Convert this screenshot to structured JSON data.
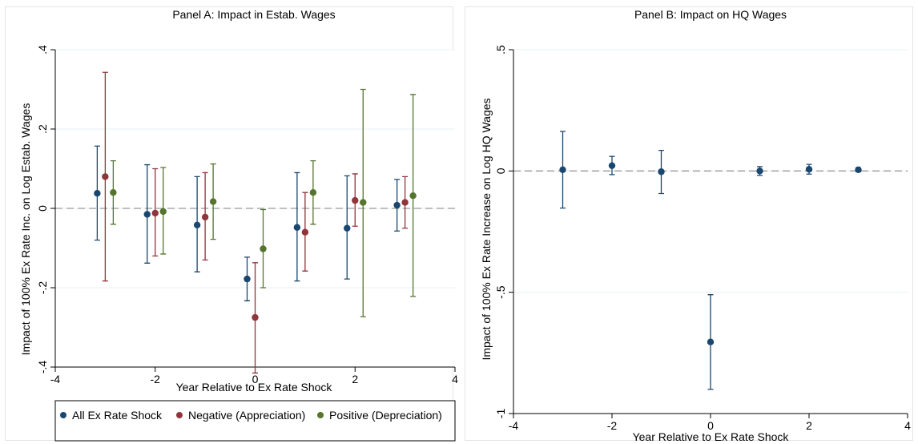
{
  "colors": {
    "all": "#1a476f",
    "negative": "#90353b",
    "positive": "#55752f",
    "grid": "#eaf0f5",
    "zero_line": "#999999"
  },
  "chart_data": [
    {
      "type": "scatter",
      "title": "Panel A: Impact in Estab. Wages",
      "xlabel": "Year Relative to Ex Rate Shock",
      "ylabel": "Impact of 100% Ex Rate Inc. on Log Estab. Wages",
      "xlim": [
        -4,
        4
      ],
      "ylim": [
        -0.4,
        0.4
      ],
      "xticks": [
        -4,
        -2,
        0,
        2,
        4
      ],
      "xtick_labels": [
        "-4",
        "-2",
        "0",
        "2",
        "4"
      ],
      "yticks": [
        -0.4,
        -0.2,
        0,
        0.2,
        0.4
      ],
      "ytick_labels": [
        "-.4",
        "-.2",
        "0",
        ".2",
        ".4"
      ],
      "grid": true,
      "reference_line_y": 0,
      "legend": {
        "position": "bottom",
        "entries": [
          "All Ex Rate Shock",
          "Negative (Appreciation)",
          "Positive (Depreciation)"
        ]
      },
      "series": [
        {
          "name": "All Ex Rate Shock",
          "color": "#1a476f",
          "points": [
            {
              "x": -3,
              "y": 0.038,
              "lo": -0.08,
              "hi": 0.157
            },
            {
              "x": -2,
              "y": -0.015,
              "lo": -0.138,
              "hi": 0.11
            },
            {
              "x": -1,
              "y": -0.042,
              "lo": -0.16,
              "hi": 0.08
            },
            {
              "x": 0,
              "y": -0.178,
              "lo": -0.233,
              "hi": -0.123
            },
            {
              "x": 1,
              "y": -0.048,
              "lo": -0.183,
              "hi": 0.09
            },
            {
              "x": 2,
              "y": -0.05,
              "lo": -0.178,
              "hi": 0.082
            },
            {
              "x": 3,
              "y": 0.008,
              "lo": -0.057,
              "hi": 0.073
            }
          ]
        },
        {
          "name": "Negative (Appreciation)",
          "color": "#90353b",
          "points": [
            {
              "x": -3,
              "y": 0.08,
              "lo": -0.183,
              "hi": 0.343
            },
            {
              "x": -2,
              "y": -0.012,
              "lo": -0.12,
              "hi": 0.1
            },
            {
              "x": -1,
              "y": -0.022,
              "lo": -0.13,
              "hi": 0.09
            },
            {
              "x": 0,
              "y": -0.275,
              "lo": -0.415,
              "hi": -0.137
            },
            {
              "x": 1,
              "y": -0.06,
              "lo": -0.158,
              "hi": 0.04
            },
            {
              "x": 2,
              "y": 0.02,
              "lo": -0.045,
              "hi": 0.087
            },
            {
              "x": 3,
              "y": 0.015,
              "lo": -0.05,
              "hi": 0.08
            }
          ]
        },
        {
          "name": "Positive (Depreciation)",
          "color": "#55752f",
          "points": [
            {
              "x": -3,
              "y": 0.04,
              "lo": -0.04,
              "hi": 0.12
            },
            {
              "x": -2,
              "y": -0.008,
              "lo": -0.115,
              "hi": 0.103
            },
            {
              "x": -1,
              "y": 0.017,
              "lo": -0.078,
              "hi": 0.112
            },
            {
              "x": 0,
              "y": -0.102,
              "lo": -0.2,
              "hi": -0.003
            },
            {
              "x": 1,
              "y": 0.04,
              "lo": -0.04,
              "hi": 0.12
            },
            {
              "x": 2,
              "y": 0.015,
              "lo": -0.273,
              "hi": 0.3
            },
            {
              "x": 3,
              "y": 0.032,
              "lo": -0.222,
              "hi": 0.287
            }
          ]
        }
      ]
    },
    {
      "type": "scatter",
      "title": "Panel B: Impact on HQ Wages",
      "xlabel": "Year Relative to Ex Rate Shock",
      "ylabel": "Impact of 100% Ex Rate Increase on Log HQ Wages",
      "xlim": [
        -4,
        4
      ],
      "ylim": [
        -1,
        0.5
      ],
      "xticks": [
        -4,
        -2,
        0,
        2,
        4
      ],
      "xtick_labels": [
        "-4",
        "-2",
        "0",
        "2",
        "4"
      ],
      "yticks": [
        -1,
        -0.5,
        0,
        0.5
      ],
      "ytick_labels": [
        "-1",
        "-.5",
        "0",
        ".5"
      ],
      "grid": true,
      "reference_line_y": 0,
      "series": [
        {
          "color": "#1a476f",
          "points": [
            {
              "x": -3,
              "y": 0.005,
              "lo": -0.153,
              "hi": 0.163
            },
            {
              "x": -2,
              "y": 0.022,
              "lo": -0.015,
              "hi": 0.06
            },
            {
              "x": -1,
              "y": -0.003,
              "lo": -0.093,
              "hi": 0.085
            },
            {
              "x": 0,
              "y": -0.705,
              "lo": -0.9,
              "hi": -0.51
            },
            {
              "x": 1,
              "y": 0.0,
              "lo": -0.018,
              "hi": 0.018
            },
            {
              "x": 2,
              "y": 0.007,
              "lo": -0.013,
              "hi": 0.027
            },
            {
              "x": 3,
              "y": 0.005,
              "lo": -0.003,
              "hi": 0.013
            }
          ]
        }
      ]
    }
  ]
}
